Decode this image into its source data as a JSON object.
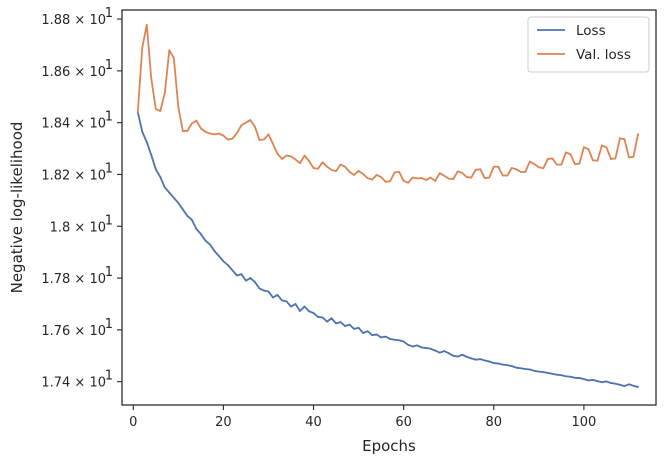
{
  "chart_data": {
    "type": "line",
    "title": "",
    "xlabel": "Epochs",
    "ylabel": "Negative log-likelihood",
    "xlim": [
      -2.5,
      116
    ],
    "ylim": [
      17.31,
      18.835
    ],
    "grid": false,
    "legend": {
      "placement": "top-right",
      "entries": [
        "Loss",
        "Val. loss"
      ]
    },
    "x_ticks": [
      {
        "value": 0,
        "label": "0"
      },
      {
        "value": 20,
        "label": "20"
      },
      {
        "value": 40,
        "label": "40"
      },
      {
        "value": 60,
        "label": "60"
      },
      {
        "value": 80,
        "label": "80"
      },
      {
        "value": 100,
        "label": "100"
      }
    ],
    "y_ticks": [
      {
        "value": 17.4,
        "mantissa": "1.74",
        "base": "× 10",
        "exponent": "1"
      },
      {
        "value": 17.6,
        "mantissa": "1.76",
        "base": "× 10",
        "exponent": "1"
      },
      {
        "value": 17.8,
        "mantissa": "1.78",
        "base": "× 10",
        "exponent": "1"
      },
      {
        "value": 18.0,
        "mantissa": "1.8",
        "base": "× 10",
        "exponent": "1"
      },
      {
        "value": 18.2,
        "mantissa": "1.82",
        "base": "× 10",
        "exponent": "1"
      },
      {
        "value": 18.4,
        "mantissa": "1.84",
        "base": "× 10",
        "exponent": "1"
      },
      {
        "value": 18.6,
        "mantissa": "1.86",
        "base": "× 10",
        "exponent": "1"
      },
      {
        "value": 18.8,
        "mantissa": "1.88",
        "base": "× 10",
        "exponent": "1"
      }
    ],
    "series": [
      {
        "name": "Loss",
        "color": "#4c72b0",
        "x": [
          1,
          2,
          3,
          4,
          5,
          6,
          7,
          8,
          9,
          10,
          11,
          12,
          13,
          14,
          15,
          16,
          17,
          18,
          19,
          20,
          21,
          22,
          23,
          24,
          25,
          26,
          27,
          28,
          29,
          30,
          31,
          32,
          33,
          34,
          35,
          36,
          37,
          38,
          39,
          40,
          41,
          42,
          43,
          44,
          45,
          46,
          47,
          48,
          49,
          50,
          51,
          52,
          53,
          54,
          55,
          56,
          57,
          58,
          59,
          60,
          61,
          62,
          63,
          64,
          65,
          66,
          67,
          68,
          69,
          70,
          71,
          72,
          73,
          74,
          75,
          76,
          77,
          78,
          79,
          80,
          81,
          82,
          83,
          84,
          85,
          86,
          87,
          88,
          89,
          90,
          91,
          92,
          93,
          94,
          95,
          96,
          97,
          98,
          99,
          100,
          101,
          102,
          103,
          104,
          105,
          106,
          107,
          108,
          109,
          110,
          111,
          112
        ],
        "values": [
          18.44,
          18.365,
          18.325,
          18.275,
          18.22,
          18.19,
          18.15,
          18.13,
          18.11,
          18.09,
          18.065,
          18.04,
          18.025,
          17.99,
          17.97,
          17.945,
          17.93,
          17.905,
          17.885,
          17.865,
          17.85,
          17.83,
          17.81,
          17.815,
          17.79,
          17.8,
          17.785,
          17.76,
          17.752,
          17.748,
          17.725,
          17.735,
          17.714,
          17.71,
          17.69,
          17.7,
          17.673,
          17.69,
          17.672,
          17.665,
          17.65,
          17.648,
          17.632,
          17.645,
          17.625,
          17.63,
          17.615,
          17.62,
          17.604,
          17.608,
          17.588,
          17.595,
          17.58,
          17.582,
          17.571,
          17.574,
          17.565,
          17.562,
          17.56,
          17.555,
          17.542,
          17.536,
          17.54,
          17.532,
          17.53,
          17.527,
          17.52,
          17.512,
          17.518,
          17.51,
          17.5,
          17.497,
          17.504,
          17.496,
          17.49,
          17.485,
          17.487,
          17.482,
          17.478,
          17.472,
          17.47,
          17.466,
          17.464,
          17.46,
          17.454,
          17.452,
          17.449,
          17.447,
          17.442,
          17.439,
          17.437,
          17.434,
          17.43,
          17.427,
          17.425,
          17.421,
          17.419,
          17.415,
          17.414,
          17.41,
          17.405,
          17.407,
          17.402,
          17.398,
          17.401,
          17.395,
          17.392,
          17.388,
          17.383,
          17.39,
          17.384,
          17.38
        ]
      },
      {
        "name": "Val. loss",
        "color": "#dd8452",
        "x": [
          1,
          2,
          3,
          4,
          5,
          6,
          7,
          8,
          9,
          10,
          11,
          12,
          13,
          14,
          15,
          16,
          17,
          18,
          19,
          20,
          21,
          22,
          23,
          24,
          25,
          26,
          27,
          28,
          29,
          30,
          31,
          32,
          33,
          34,
          35,
          36,
          37,
          38,
          39,
          40,
          41,
          42,
          43,
          44,
          45,
          46,
          47,
          48,
          49,
          50,
          51,
          52,
          53,
          54,
          55,
          56,
          57,
          58,
          59,
          60,
          61,
          62,
          63,
          64,
          65,
          66,
          67,
          68,
          69,
          70,
          71,
          72,
          73,
          74,
          75,
          76,
          77,
          78,
          79,
          80,
          81,
          82,
          83,
          84,
          85,
          86,
          87,
          88,
          89,
          90,
          91,
          92,
          93,
          94,
          95,
          96,
          97,
          98,
          99,
          100,
          101,
          102,
          103,
          104,
          105,
          106,
          107,
          108,
          109,
          110,
          111,
          112
        ],
        "values": [
          18.44,
          18.69,
          18.778,
          18.57,
          18.453,
          18.445,
          18.515,
          18.68,
          18.65,
          18.46,
          18.368,
          18.368,
          18.397,
          18.408,
          18.378,
          18.365,
          18.358,
          18.355,
          18.358,
          18.35,
          18.335,
          18.338,
          18.36,
          18.39,
          18.4,
          18.41,
          18.385,
          18.333,
          18.335,
          18.355,
          18.318,
          18.28,
          18.26,
          18.273,
          18.27,
          18.258,
          18.243,
          18.273,
          18.252,
          18.225,
          18.222,
          18.247,
          18.23,
          18.218,
          18.213,
          18.238,
          18.23,
          18.21,
          18.198,
          18.214,
          18.202,
          18.186,
          18.18,
          18.198,
          18.19,
          18.172,
          18.174,
          18.208,
          18.21,
          18.175,
          18.168,
          18.188,
          18.185,
          18.186,
          18.179,
          18.188,
          18.175,
          18.205,
          18.195,
          18.184,
          18.182,
          18.212,
          18.206,
          18.19,
          18.188,
          18.218,
          18.22,
          18.186,
          18.188,
          18.23,
          18.23,
          18.196,
          18.196,
          18.225,
          18.22,
          18.21,
          18.21,
          18.25,
          18.24,
          18.228,
          18.224,
          18.26,
          18.262,
          18.238,
          18.238,
          18.285,
          18.278,
          18.24,
          18.242,
          18.305,
          18.298,
          18.255,
          18.253,
          18.312,
          18.305,
          18.26,
          18.262,
          18.34,
          18.336,
          18.266,
          18.268,
          18.355
        ]
      }
    ]
  }
}
